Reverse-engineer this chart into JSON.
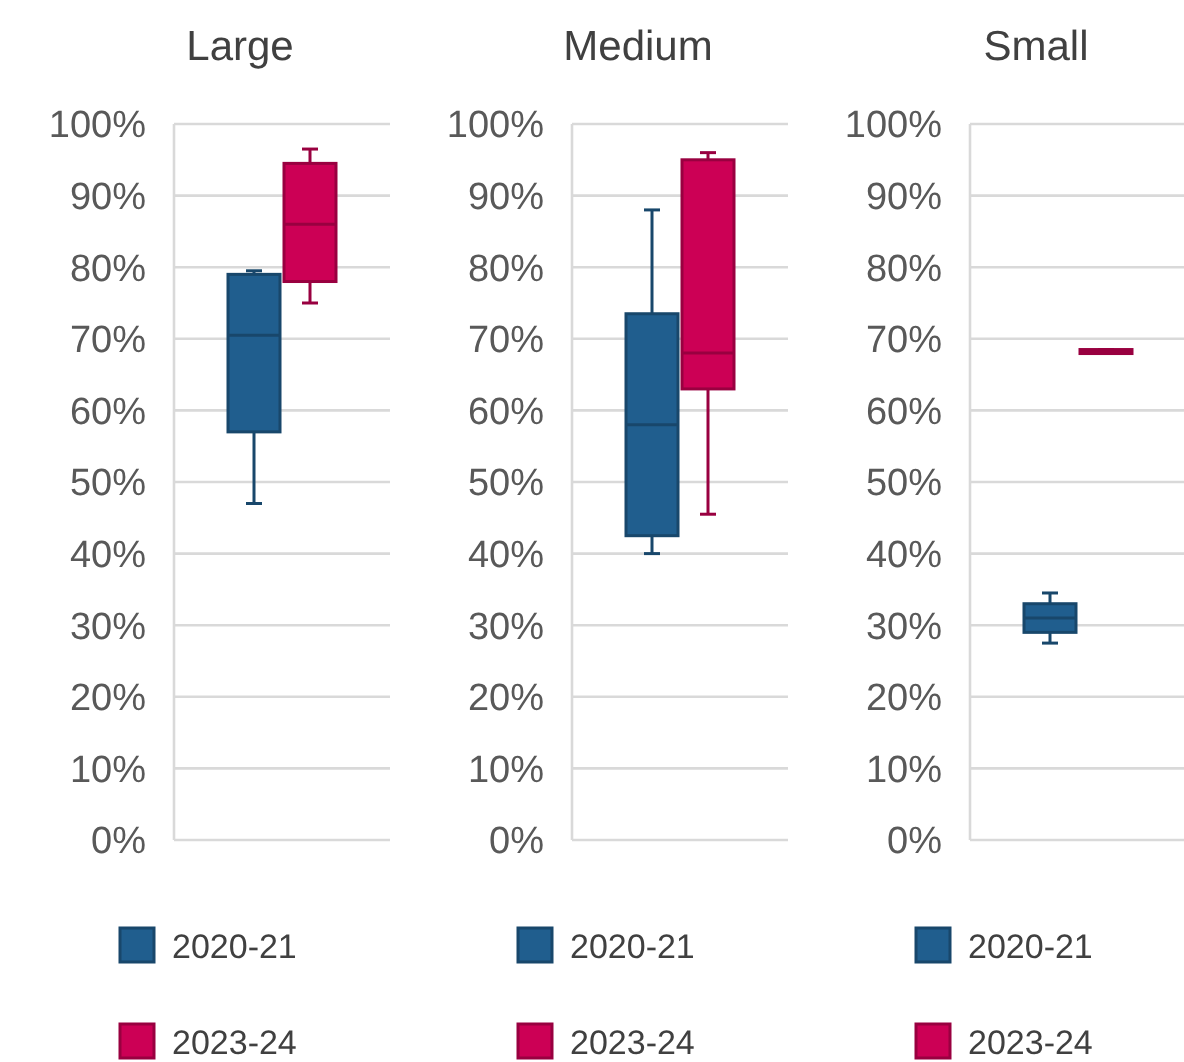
{
  "chart_data": [
    {
      "type": "box",
      "title": "Large",
      "categories": [
        null
      ],
      "ylim": [
        0,
        100
      ],
      "yticks": [
        {
          "value": 0,
          "label": "0%"
        },
        {
          "value": 10,
          "label": "10%"
        },
        {
          "value": 20,
          "label": "20%"
        },
        {
          "value": 30,
          "label": "30%"
        },
        {
          "value": 40,
          "label": "40%"
        },
        {
          "value": 50,
          "label": "50%"
        },
        {
          "value": 60,
          "label": "60%"
        },
        {
          "value": 70,
          "label": "70%"
        },
        {
          "value": 80,
          "label": "80%"
        },
        {
          "value": 90,
          "label": "90%"
        },
        {
          "value": 100,
          "label": "100%"
        }
      ],
      "grid": "y",
      "legend": "bottom",
      "series": [
        {
          "name": "2020-21",
          "color": "#205e8e",
          "boxes": [
            {
              "low": 47,
              "q1": 57,
              "median": 70.5,
              "q3": 79,
              "high": 79.5
            }
          ]
        },
        {
          "name": "2023-24",
          "color": "#cc0055",
          "boxes": [
            {
              "low": 75,
              "q1": 78,
              "median": 86,
              "q3": 94.5,
              "high": 96.5
            }
          ]
        }
      ]
    },
    {
      "type": "box",
      "title": "Medium",
      "categories": [
        null
      ],
      "ylim": [
        0,
        100
      ],
      "yticks": [
        {
          "value": 0,
          "label": "0%"
        },
        {
          "value": 10,
          "label": "10%"
        },
        {
          "value": 20,
          "label": "20%"
        },
        {
          "value": 30,
          "label": "30%"
        },
        {
          "value": 40,
          "label": "40%"
        },
        {
          "value": 50,
          "label": "50%"
        },
        {
          "value": 60,
          "label": "60%"
        },
        {
          "value": 70,
          "label": "70%"
        },
        {
          "value": 80,
          "label": "80%"
        },
        {
          "value": 90,
          "label": "90%"
        },
        {
          "value": 100,
          "label": "100%"
        }
      ],
      "grid": "y",
      "legend": "bottom",
      "series": [
        {
          "name": "2020-21",
          "color": "#205e8e",
          "boxes": [
            {
              "low": 40,
              "q1": 42.5,
              "median": 58,
              "q3": 73.5,
              "high": 88
            }
          ]
        },
        {
          "name": "2023-24",
          "color": "#cc0055",
          "boxes": [
            {
              "low": 45.5,
              "q1": 63,
              "median": 68,
              "q3": 95,
              "high": 96
            }
          ]
        }
      ]
    },
    {
      "type": "box",
      "title": "Small",
      "categories": [
        null
      ],
      "ylim": [
        0,
        100
      ],
      "yticks": [
        {
          "value": 0,
          "label": "0%"
        },
        {
          "value": 10,
          "label": "10%"
        },
        {
          "value": 20,
          "label": "20%"
        },
        {
          "value": 30,
          "label": "30%"
        },
        {
          "value": 40,
          "label": "40%"
        },
        {
          "value": 50,
          "label": "50%"
        },
        {
          "value": 60,
          "label": "60%"
        },
        {
          "value": 70,
          "label": "70%"
        },
        {
          "value": 80,
          "label": "80%"
        },
        {
          "value": 90,
          "label": "90%"
        },
        {
          "value": 100,
          "label": "100%"
        }
      ],
      "grid": "y",
      "legend": "bottom",
      "series": [
        {
          "name": "2020-21",
          "color": "#205e8e",
          "boxes": [
            {
              "low": 27.5,
              "q1": 29,
              "median": 31,
              "q3": 33,
              "high": 34.5
            }
          ]
        },
        {
          "name": "2023-24",
          "color": "#cc0055",
          "boxes": [
            {
              "low": 68,
              "q1": 68,
              "median": 68.2,
              "q3": 68.5,
              "high": 68.5
            }
          ]
        }
      ]
    }
  ]
}
